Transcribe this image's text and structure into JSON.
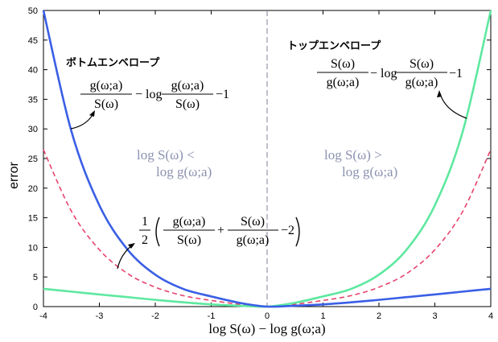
{
  "chart_data": {
    "type": "line",
    "xlabel": "log S(ω) − log g(ω;a)",
    "ylabel": "error",
    "xlim": [
      -4,
      4
    ],
    "ylim": [
      0,
      50
    ],
    "x_ticks": [
      "-4",
      "-3",
      "-2",
      "-1",
      "0",
      "1",
      "2",
      "3",
      "4"
    ],
    "y_ticks": [
      "0",
      "5",
      "10",
      "15",
      "20",
      "25",
      "30",
      "35",
      "40",
      "45",
      "50"
    ],
    "x": [
      -4,
      -3.5,
      -3,
      -2.5,
      -2,
      -1.5,
      -1,
      -0.5,
      0,
      0.5,
      1,
      1.5,
      2,
      2.5,
      3,
      3.5,
      4
    ],
    "series": [
      {
        "color": "#3a5fe5",
        "style": "solid",
        "values": [
          50.0,
          29.6,
          17.1,
          9.68,
          5.39,
          2.98,
          1.72,
          0.65,
          0,
          0.15,
          0.37,
          0.72,
          1.14,
          1.6,
          2.05,
          2.53,
          3.0
        ]
      },
      {
        "color": "#5ee8a0",
        "style": "solid",
        "values": [
          3.0,
          2.53,
          2.05,
          1.6,
          1.14,
          0.72,
          0.37,
          0.15,
          0,
          0.65,
          1.72,
          2.98,
          5.39,
          9.68,
          17.1,
          29.6,
          50.0
        ]
      },
      {
        "color": "#e8436e",
        "style": "dashed",
        "values": [
          26.5,
          16.1,
          9.6,
          5.6,
          3.27,
          1.85,
          1.04,
          0.4,
          0,
          0.4,
          1.04,
          1.85,
          3.27,
          5.6,
          9.6,
          16.1,
          26.5
        ]
      }
    ],
    "annotations": {
      "bottom_label": "ボトムエンベロープ",
      "top_label": "トップエンベロープ",
      "left_region": [
        "log S(ω) <",
        "log g(ω;a)"
      ],
      "right_region": [
        "log S(ω) >",
        "log g(ω;a)"
      ],
      "formula_bottom": {
        "frac1_num": "g(ω;a)",
        "frac1_den": "S(ω)",
        "minus_log": "− log",
        "frac2_num": "g(ω;a)",
        "frac2_den": "S(ω)",
        "tail": "−1"
      },
      "formula_top": {
        "frac1_num": "S(ω)",
        "frac1_den": "g(ω;a)",
        "minus_log": "− log",
        "frac2_num": "S(ω)",
        "frac2_den": "g(ω;a)",
        "tail": "−1"
      },
      "formula_avg": {
        "half_num": "1",
        "half_den": "2",
        "frac1_num": "g(ω;a)",
        "frac1_den": "S(ω)",
        "plus": "+",
        "frac2_num": "S(ω)",
        "frac2_den": "g(ω;a)",
        "tail": "−2"
      }
    }
  }
}
